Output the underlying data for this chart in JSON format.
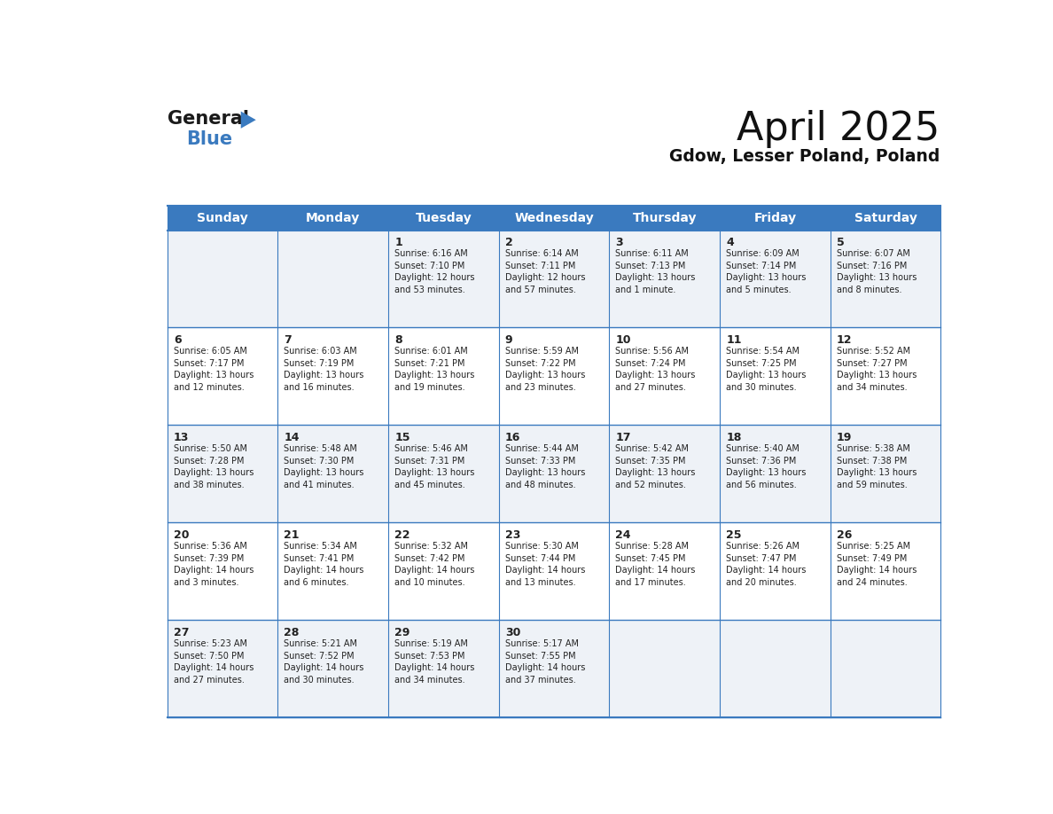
{
  "title": "April 2025",
  "subtitle": "Gdow, Lesser Poland, Poland",
  "header_bg": "#3a7abf",
  "header_text": "#ffffff",
  "day_names": [
    "Sunday",
    "Monday",
    "Tuesday",
    "Wednesday",
    "Thursday",
    "Friday",
    "Saturday"
  ],
  "row_bg_even": "#ffffff",
  "row_bg_odd": "#eef2f7",
  "cell_text_color": "#222222",
  "border_color": "#3a7abf",
  "days": [
    {
      "date": 1,
      "col": 2,
      "row": 0,
      "sunrise": "6:16 AM",
      "sunset": "7:10 PM",
      "daylight_h": "12 hours",
      "daylight_m": "and 53 minutes."
    },
    {
      "date": 2,
      "col": 3,
      "row": 0,
      "sunrise": "6:14 AM",
      "sunset": "7:11 PM",
      "daylight_h": "12 hours",
      "daylight_m": "and 57 minutes."
    },
    {
      "date": 3,
      "col": 4,
      "row": 0,
      "sunrise": "6:11 AM",
      "sunset": "7:13 PM",
      "daylight_h": "13 hours",
      "daylight_m": "and 1 minute."
    },
    {
      "date": 4,
      "col": 5,
      "row": 0,
      "sunrise": "6:09 AM",
      "sunset": "7:14 PM",
      "daylight_h": "13 hours",
      "daylight_m": "and 5 minutes."
    },
    {
      "date": 5,
      "col": 6,
      "row": 0,
      "sunrise": "6:07 AM",
      "sunset": "7:16 PM",
      "daylight_h": "13 hours",
      "daylight_m": "and 8 minutes."
    },
    {
      "date": 6,
      "col": 0,
      "row": 1,
      "sunrise": "6:05 AM",
      "sunset": "7:17 PM",
      "daylight_h": "13 hours",
      "daylight_m": "and 12 minutes."
    },
    {
      "date": 7,
      "col": 1,
      "row": 1,
      "sunrise": "6:03 AM",
      "sunset": "7:19 PM",
      "daylight_h": "13 hours",
      "daylight_m": "and 16 minutes."
    },
    {
      "date": 8,
      "col": 2,
      "row": 1,
      "sunrise": "6:01 AM",
      "sunset": "7:21 PM",
      "daylight_h": "13 hours",
      "daylight_m": "and 19 minutes."
    },
    {
      "date": 9,
      "col": 3,
      "row": 1,
      "sunrise": "5:59 AM",
      "sunset": "7:22 PM",
      "daylight_h": "13 hours",
      "daylight_m": "and 23 minutes."
    },
    {
      "date": 10,
      "col": 4,
      "row": 1,
      "sunrise": "5:56 AM",
      "sunset": "7:24 PM",
      "daylight_h": "13 hours",
      "daylight_m": "and 27 minutes."
    },
    {
      "date": 11,
      "col": 5,
      "row": 1,
      "sunrise": "5:54 AM",
      "sunset": "7:25 PM",
      "daylight_h": "13 hours",
      "daylight_m": "and 30 minutes."
    },
    {
      "date": 12,
      "col": 6,
      "row": 1,
      "sunrise": "5:52 AM",
      "sunset": "7:27 PM",
      "daylight_h": "13 hours",
      "daylight_m": "and 34 minutes."
    },
    {
      "date": 13,
      "col": 0,
      "row": 2,
      "sunrise": "5:50 AM",
      "sunset": "7:28 PM",
      "daylight_h": "13 hours",
      "daylight_m": "and 38 minutes."
    },
    {
      "date": 14,
      "col": 1,
      "row": 2,
      "sunrise": "5:48 AM",
      "sunset": "7:30 PM",
      "daylight_h": "13 hours",
      "daylight_m": "and 41 minutes."
    },
    {
      "date": 15,
      "col": 2,
      "row": 2,
      "sunrise": "5:46 AM",
      "sunset": "7:31 PM",
      "daylight_h": "13 hours",
      "daylight_m": "and 45 minutes."
    },
    {
      "date": 16,
      "col": 3,
      "row": 2,
      "sunrise": "5:44 AM",
      "sunset": "7:33 PM",
      "daylight_h": "13 hours",
      "daylight_m": "and 48 minutes."
    },
    {
      "date": 17,
      "col": 4,
      "row": 2,
      "sunrise": "5:42 AM",
      "sunset": "7:35 PM",
      "daylight_h": "13 hours",
      "daylight_m": "and 52 minutes."
    },
    {
      "date": 18,
      "col": 5,
      "row": 2,
      "sunrise": "5:40 AM",
      "sunset": "7:36 PM",
      "daylight_h": "13 hours",
      "daylight_m": "and 56 minutes."
    },
    {
      "date": 19,
      "col": 6,
      "row": 2,
      "sunrise": "5:38 AM",
      "sunset": "7:38 PM",
      "daylight_h": "13 hours",
      "daylight_m": "and 59 minutes."
    },
    {
      "date": 20,
      "col": 0,
      "row": 3,
      "sunrise": "5:36 AM",
      "sunset": "7:39 PM",
      "daylight_h": "14 hours",
      "daylight_m": "and 3 minutes."
    },
    {
      "date": 21,
      "col": 1,
      "row": 3,
      "sunrise": "5:34 AM",
      "sunset": "7:41 PM",
      "daylight_h": "14 hours",
      "daylight_m": "and 6 minutes."
    },
    {
      "date": 22,
      "col": 2,
      "row": 3,
      "sunrise": "5:32 AM",
      "sunset": "7:42 PM",
      "daylight_h": "14 hours",
      "daylight_m": "and 10 minutes."
    },
    {
      "date": 23,
      "col": 3,
      "row": 3,
      "sunrise": "5:30 AM",
      "sunset": "7:44 PM",
      "daylight_h": "14 hours",
      "daylight_m": "and 13 minutes."
    },
    {
      "date": 24,
      "col": 4,
      "row": 3,
      "sunrise": "5:28 AM",
      "sunset": "7:45 PM",
      "daylight_h": "14 hours",
      "daylight_m": "and 17 minutes."
    },
    {
      "date": 25,
      "col": 5,
      "row": 3,
      "sunrise": "5:26 AM",
      "sunset": "7:47 PM",
      "daylight_h": "14 hours",
      "daylight_m": "and 20 minutes."
    },
    {
      "date": 26,
      "col": 6,
      "row": 3,
      "sunrise": "5:25 AM",
      "sunset": "7:49 PM",
      "daylight_h": "14 hours",
      "daylight_m": "and 24 minutes."
    },
    {
      "date": 27,
      "col": 0,
      "row": 4,
      "sunrise": "5:23 AM",
      "sunset": "7:50 PM",
      "daylight_h": "14 hours",
      "daylight_m": "and 27 minutes."
    },
    {
      "date": 28,
      "col": 1,
      "row": 4,
      "sunrise": "5:21 AM",
      "sunset": "7:52 PM",
      "daylight_h": "14 hours",
      "daylight_m": "and 30 minutes."
    },
    {
      "date": 29,
      "col": 2,
      "row": 4,
      "sunrise": "5:19 AM",
      "sunset": "7:53 PM",
      "daylight_h": "14 hours",
      "daylight_m": "and 34 minutes."
    },
    {
      "date": 30,
      "col": 3,
      "row": 4,
      "sunrise": "5:17 AM",
      "sunset": "7:55 PM",
      "daylight_h": "14 hours",
      "daylight_m": "and 37 minutes."
    }
  ],
  "num_rows": 5,
  "num_cols": 7,
  "logo_general_color": "#1a1a1a",
  "logo_blue_color": "#3a7abf",
  "logo_triangle_color": "#3a7abf",
  "fig_width": 11.88,
  "fig_height": 9.18
}
